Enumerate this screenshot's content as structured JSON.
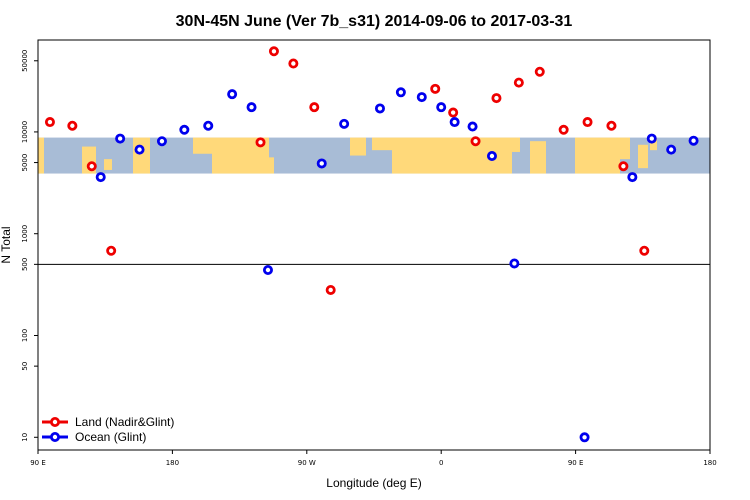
{
  "chart_data": {
    "type": "scatter",
    "title": "30N-45N June (Ver 7b_s31)   2014-09-06 to 2017-03-31",
    "xlabel": "Longitude (deg E)",
    "ylabel": "N Total",
    "xlim": [
      90,
      540
    ],
    "ylim_log": [
      7.5,
      80000
    ],
    "yscale": "log",
    "x_ticks": [
      {
        "value": 90,
        "label": "90 E"
      },
      {
        "value": 180,
        "label": "180"
      },
      {
        "value": 270,
        "label": "90 W"
      },
      {
        "value": 360,
        "label": "0"
      },
      {
        "value": 450,
        "label": "90 E"
      },
      {
        "value": 540,
        "label": "180"
      }
    ],
    "y_ticks": [
      {
        "value": 10,
        "label": "10"
      },
      {
        "value": 50,
        "label": "50"
      },
      {
        "value": 100,
        "label": "100"
      },
      {
        "value": 500,
        "label": "500"
      },
      {
        "value": 1000,
        "label": "1000"
      },
      {
        "value": 5000,
        "label": "5000"
      },
      {
        "value": 10000,
        "label": "10000"
      },
      {
        "value": 50000,
        "label": "50000"
      }
    ],
    "reference_line_y": 500,
    "map_band": {
      "y_min": 3900,
      "y_max": 8800,
      "land_color": "#ffd97a",
      "ocean_color": "#a8bcd6"
    },
    "series": [
      {
        "name": "Land (Nadir&Glint)",
        "color": "#ee0000",
        "points": [
          [
            98,
            12500
          ],
          [
            113,
            11500
          ],
          [
            126,
            4600
          ],
          [
            139,
            680
          ],
          [
            239,
            7900
          ],
          [
            248,
            62000
          ],
          [
            261,
            47000
          ],
          [
            275,
            17500
          ],
          [
            286,
            280
          ],
          [
            356,
            26500
          ],
          [
            368,
            15500
          ],
          [
            383,
            8100
          ],
          [
            397,
            21500
          ],
          [
            412,
            30500
          ],
          [
            426,
            39000
          ],
          [
            442,
            10500
          ],
          [
            458,
            12500
          ],
          [
            474,
            11500
          ],
          [
            482,
            4600
          ],
          [
            496,
            680
          ]
        ]
      },
      {
        "name": "Ocean (Glint)",
        "color": "#0000ee",
        "points": [
          [
            132,
            3600
          ],
          [
            145,
            8600
          ],
          [
            158,
            6700
          ],
          [
            173,
            8100
          ],
          [
            188,
            10500
          ],
          [
            204,
            11500
          ],
          [
            220,
            23500
          ],
          [
            233,
            17500
          ],
          [
            244,
            440
          ],
          [
            280,
            4900
          ],
          [
            295,
            12000
          ],
          [
            319,
            17000
          ],
          [
            333,
            24500
          ],
          [
            347,
            22000
          ],
          [
            360,
            17500
          ],
          [
            369,
            12500
          ],
          [
            381,
            11300
          ],
          [
            394,
            5800
          ],
          [
            409,
            510
          ],
          [
            456,
            10
          ],
          [
            488,
            3600
          ],
          [
            501,
            8600
          ],
          [
            514,
            6700
          ],
          [
            529,
            8200
          ]
        ]
      }
    ],
    "legend_position": "bottom-left"
  }
}
